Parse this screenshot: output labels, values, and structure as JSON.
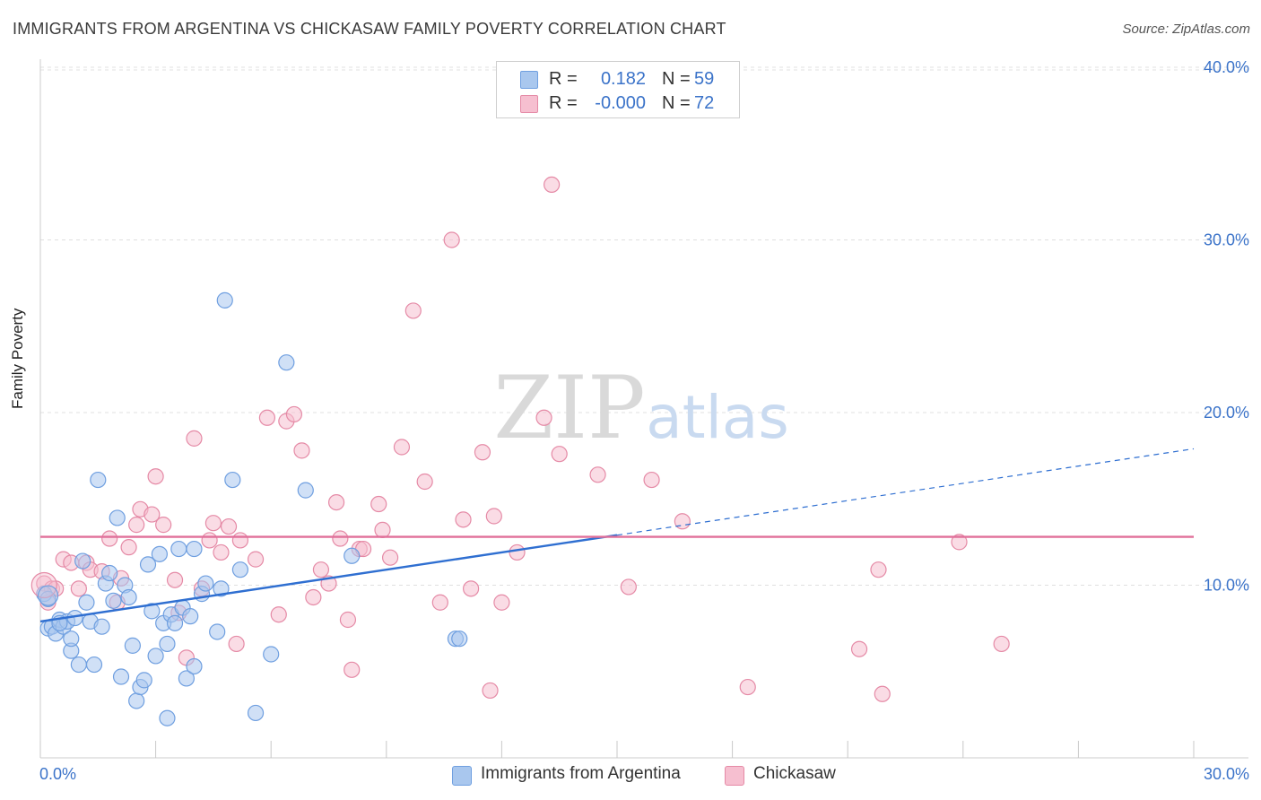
{
  "header": {
    "title": "IMMIGRANTS FROM ARGENTINA VS CHICKASAW FAMILY POVERTY CORRELATION CHART",
    "source": "Source: ZipAtlas.com"
  },
  "watermark": {
    "zip": "ZIP",
    "atlas": "atlas"
  },
  "legend": {
    "rows": [
      {
        "r_label": "R =",
        "r_value": "0.182",
        "n_label": "N =",
        "n_value": "59",
        "color": "#a9c7ee",
        "border": "#6f9fe0"
      },
      {
        "r_label": "R =",
        "r_value": "-0.000",
        "n_label": "N =",
        "n_value": "72",
        "color": "#f6bfd0",
        "border": "#e58aa6"
      }
    ]
  },
  "bottom_legend": {
    "series1": "Immigrants from Argentina",
    "series2": "Chickasaw"
  },
  "colors": {
    "blue_fill": "#a9c7ee",
    "blue_stroke": "#6f9fe0",
    "blue_line": "#2f6fd1",
    "pink_fill": "#f6bfd0",
    "pink_stroke": "#e58aa6",
    "pink_line": "#e0709a",
    "axis_text": "#3b73c9",
    "grid": "#e0e0e0"
  },
  "chart_data": {
    "type": "scatter",
    "title": "IMMIGRANTS FROM ARGENTINA VS CHICKASAW FAMILY POVERTY CORRELATION CHART",
    "xlabel": "",
    "ylabel": "Family Poverty",
    "xlim": [
      0,
      30
    ],
    "ylim": [
      0,
      40
    ],
    "x_tick_labels": [
      "0.0%",
      "30.0%"
    ],
    "y_ticks": [
      10,
      20,
      30,
      40
    ],
    "y_tick_labels": [
      "10.0%",
      "20.0%",
      "30.0%",
      "40.0%"
    ],
    "grid": true,
    "legend_position": "top-center",
    "series": [
      {
        "name": "Immigrants from Argentina",
        "r": 0.182,
        "n": 59,
        "trend": {
          "x0": 0,
          "y0": 7.9,
          "x1": 15,
          "y1": 12.9,
          "dash_x1": 30,
          "dash_y1": 17.9
        },
        "points": [
          [
            0.1,
            9.5
          ],
          [
            0.2,
            9.2
          ],
          [
            0.2,
            7.5
          ],
          [
            0.3,
            7.6
          ],
          [
            0.4,
            7.2
          ],
          [
            0.5,
            8.0
          ],
          [
            0.6,
            7.6
          ],
          [
            0.7,
            7.9
          ],
          [
            0.8,
            6.2
          ],
          [
            0.8,
            6.9
          ],
          [
            0.9,
            8.1
          ],
          [
            1.0,
            5.4
          ],
          [
            1.1,
            11.4
          ],
          [
            1.2,
            9.0
          ],
          [
            1.3,
            7.9
          ],
          [
            1.4,
            5.4
          ],
          [
            1.5,
            16.1
          ],
          [
            1.6,
            7.6
          ],
          [
            1.7,
            10.1
          ],
          [
            1.8,
            10.7
          ],
          [
            1.9,
            9.1
          ],
          [
            2.0,
            13.9
          ],
          [
            2.1,
            4.7
          ],
          [
            2.2,
            10.0
          ],
          [
            2.3,
            9.3
          ],
          [
            2.4,
            6.5
          ],
          [
            2.5,
            3.3
          ],
          [
            2.6,
            4.1
          ],
          [
            2.7,
            4.5
          ],
          [
            2.8,
            11.2
          ],
          [
            2.9,
            8.5
          ],
          [
            3.0,
            5.9
          ],
          [
            3.1,
            11.8
          ],
          [
            3.2,
            7.8
          ],
          [
            3.3,
            6.6
          ],
          [
            3.3,
            2.3
          ],
          [
            3.4,
            8.3
          ],
          [
            3.5,
            7.8
          ],
          [
            3.6,
            12.1
          ],
          [
            3.7,
            8.7
          ],
          [
            3.8,
            4.6
          ],
          [
            3.9,
            8.2
          ],
          [
            4.0,
            5.3
          ],
          [
            4.0,
            12.1
          ],
          [
            4.2,
            9.5
          ],
          [
            4.3,
            10.1
          ],
          [
            4.6,
            7.3
          ],
          [
            4.7,
            9.8
          ],
          [
            4.8,
            26.5
          ],
          [
            5.0,
            16.1
          ],
          [
            5.2,
            10.9
          ],
          [
            5.6,
            2.6
          ],
          [
            6.0,
            6.0
          ],
          [
            6.4,
            22.9
          ],
          [
            6.9,
            15.5
          ],
          [
            8.1,
            11.7
          ],
          [
            10.8,
            6.9
          ],
          [
            10.9,
            6.9
          ],
          [
            0.5,
            7.8
          ]
        ]
      },
      {
        "name": "Chickasaw",
        "r": -0.0,
        "n": 72,
        "trend": {
          "x0": 0,
          "y0": 12.8,
          "x1": 30,
          "y1": 12.8
        },
        "points": [
          [
            0.1,
            10.1
          ],
          [
            0.2,
            9.0
          ],
          [
            0.3,
            9.8
          ],
          [
            0.4,
            9.8
          ],
          [
            0.6,
            11.5
          ],
          [
            0.8,
            11.3
          ],
          [
            1.0,
            9.8
          ],
          [
            1.2,
            11.3
          ],
          [
            1.3,
            10.9
          ],
          [
            1.6,
            10.8
          ],
          [
            1.8,
            12.7
          ],
          [
            2.0,
            9.0
          ],
          [
            2.1,
            10.4
          ],
          [
            2.3,
            12.2
          ],
          [
            2.5,
            13.5
          ],
          [
            2.6,
            14.4
          ],
          [
            2.9,
            14.1
          ],
          [
            3.0,
            16.3
          ],
          [
            3.2,
            13.5
          ],
          [
            3.5,
            10.3
          ],
          [
            3.6,
            8.4
          ],
          [
            3.8,
            5.8
          ],
          [
            4.0,
            18.5
          ],
          [
            4.2,
            9.8
          ],
          [
            4.4,
            12.6
          ],
          [
            4.5,
            13.6
          ],
          [
            4.7,
            11.9
          ],
          [
            4.9,
            13.4
          ],
          [
            5.1,
            6.6
          ],
          [
            5.2,
            12.6
          ],
          [
            5.6,
            11.5
          ],
          [
            5.9,
            19.7
          ],
          [
            6.2,
            8.3
          ],
          [
            6.4,
            19.5
          ],
          [
            6.6,
            19.9
          ],
          [
            6.8,
            17.8
          ],
          [
            7.1,
            9.3
          ],
          [
            7.3,
            10.9
          ],
          [
            7.5,
            10.1
          ],
          [
            7.7,
            14.8
          ],
          [
            7.8,
            12.7
          ],
          [
            8.0,
            8.0
          ],
          [
            8.1,
            5.1
          ],
          [
            8.3,
            12.1
          ],
          [
            8.4,
            12.1
          ],
          [
            8.8,
            14.7
          ],
          [
            8.9,
            13.2
          ],
          [
            9.1,
            11.6
          ],
          [
            9.4,
            18.0
          ],
          [
            9.7,
            25.9
          ],
          [
            10.0,
            16.0
          ],
          [
            10.4,
            9.0
          ],
          [
            10.7,
            30.0
          ],
          [
            11.0,
            13.8
          ],
          [
            11.2,
            9.8
          ],
          [
            11.5,
            17.7
          ],
          [
            11.7,
            3.9
          ],
          [
            11.8,
            14.0
          ],
          [
            12.0,
            9.0
          ],
          [
            12.4,
            11.9
          ],
          [
            13.1,
            19.7
          ],
          [
            13.3,
            33.2
          ],
          [
            13.5,
            17.6
          ],
          [
            14.5,
            16.4
          ],
          [
            15.3,
            9.9
          ],
          [
            15.9,
            16.1
          ],
          [
            16.7,
            13.7
          ],
          [
            18.4,
            4.1
          ],
          [
            21.3,
            6.3
          ],
          [
            21.8,
            10.9
          ],
          [
            21.9,
            3.7
          ],
          [
            23.9,
            12.5
          ],
          [
            25.0,
            6.6
          ]
        ]
      }
    ]
  }
}
